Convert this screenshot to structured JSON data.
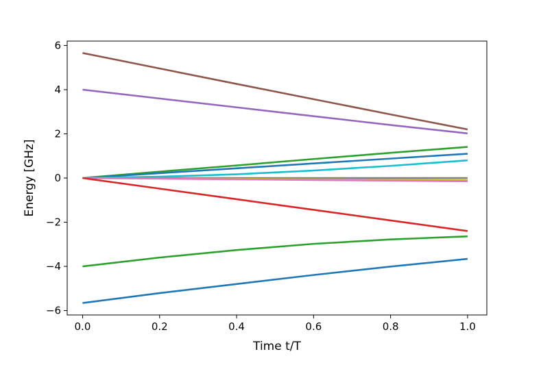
{
  "chart_data": {
    "type": "line",
    "title": "",
    "xlabel": "Time t/T",
    "ylabel": "Energy [GHz]",
    "xlim": [
      -0.04,
      1.05
    ],
    "ylim": [
      -6.2,
      6.2
    ],
    "xticks": [
      0.0,
      0.2,
      0.4,
      0.6,
      0.8,
      1.0
    ],
    "xtick_labels": [
      "0.0",
      "0.2",
      "0.4",
      "0.6",
      "0.8",
      "1.0"
    ],
    "yticks": [
      -6,
      -4,
      -2,
      0,
      2,
      4,
      6
    ],
    "ytick_labels": [
      "−6",
      "−4",
      "−2",
      "0",
      "2",
      "4",
      "6"
    ],
    "grid": false,
    "legend": "none",
    "x": [
      0.0,
      0.2,
      0.4,
      0.6,
      0.8,
      1.0
    ],
    "series": [
      {
        "color": "#8c564b",
        "values": [
          5.66,
          4.96,
          4.26,
          3.57,
          2.88,
          2.2
        ]
      },
      {
        "color": "#9467bd",
        "values": [
          4.0,
          3.6,
          3.2,
          2.8,
          2.4,
          2.02
        ]
      },
      {
        "color": "#2ca02c",
        "values": [
          0.0,
          0.29,
          0.57,
          0.86,
          1.14,
          1.41
        ]
      },
      {
        "color": "#1f77b4",
        "values": [
          0.0,
          0.22,
          0.44,
          0.66,
          0.88,
          1.1
        ]
      },
      {
        "color": "#17becf",
        "values": [
          0.0,
          0.06,
          0.17,
          0.34,
          0.55,
          0.8
        ]
      },
      {
        "color": "#7f7f7f",
        "values": [
          0.0,
          0.0,
          0.0,
          0.0,
          0.0,
          0.0
        ]
      },
      {
        "color": "#bcbd22",
        "values": [
          0.0,
          -0.02,
          -0.04,
          -0.06,
          -0.08,
          -0.1
        ]
      },
      {
        "color": "#e377c2",
        "values": [
          0.0,
          -0.03,
          -0.06,
          -0.09,
          -0.12,
          -0.15
        ]
      },
      {
        "color": "#d62728",
        "values": [
          0.0,
          -0.48,
          -0.96,
          -1.44,
          -1.92,
          -2.4
        ]
      },
      {
        "color": "#2ca02c",
        "values": [
          -4.0,
          -3.6,
          -3.26,
          -2.98,
          -2.78,
          -2.64
        ]
      },
      {
        "color": "#1f77b4",
        "values": [
          -5.66,
          -5.21,
          -4.8,
          -4.39,
          -4.01,
          -3.66
        ]
      }
    ]
  }
}
